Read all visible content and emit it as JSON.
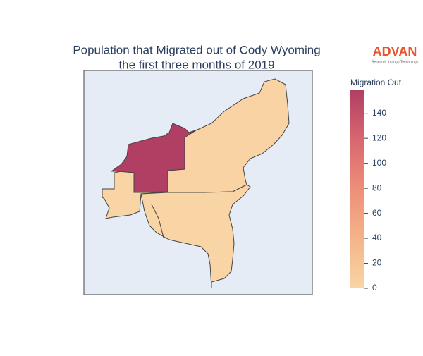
{
  "chart_data": {
    "type": "choropleth",
    "title": "Population that Migrated out of Cody Wyoming",
    "subtitle": "the first three months of 2019",
    "logo": "ADVAN",
    "logo_tagline": "Research through Technology",
    "values": [
      158,
      2,
      1,
      1
    ],
    "colorbar_title": "Migration Out",
    "colorscale": [
      "#f9d5a5",
      "#f4b48a",
      "#ed8f78",
      "#d8676f",
      "#b03e63"
    ],
    "clim": [
      0,
      159
    ],
    "cticks": [
      0,
      20,
      40,
      60,
      80,
      100,
      120,
      140
    ]
  }
}
